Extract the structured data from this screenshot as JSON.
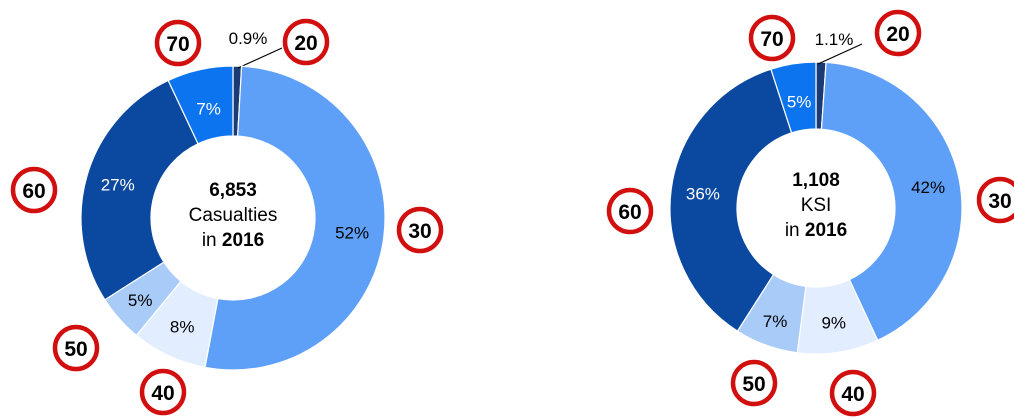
{
  "chart_data": [
    {
      "type": "pie",
      "categories": [
        "20",
        "30",
        "40",
        "50",
        "60",
        "70"
      ],
      "values": [
        0.9,
        52,
        8,
        5,
        27,
        7
      ],
      "labels": [
        "0.9%",
        "52%",
        "8%",
        "5%",
        "27%",
        "7%"
      ],
      "colors": [
        "#1b3b75",
        "#5ea0f7",
        "#e2eeff",
        "#a8cbf8",
        "#0b49a0",
        "#0c74ef"
      ],
      "label_colors": [
        "#000000",
        "#000000",
        "#000000",
        "#000000",
        "#ffffff",
        "#ffffff"
      ],
      "center": {
        "value": "6,853",
        "line2": "Casualties",
        "line3_prefix": "in ",
        "line3_bold": "2016"
      }
    },
    {
      "type": "pie",
      "categories": [
        "20",
        "30",
        "40",
        "50",
        "60",
        "70"
      ],
      "values": [
        1.1,
        42,
        9,
        7,
        36,
        5
      ],
      "labels": [
        "1.1%",
        "42%",
        "9%",
        "7%",
        "36%",
        "5%"
      ],
      "colors": [
        "#1b3b75",
        "#5ea0f7",
        "#e2eeff",
        "#a8cbf8",
        "#0b49a0",
        "#0c74ef"
      ],
      "label_colors": [
        "#000000",
        "#000000",
        "#000000",
        "#000000",
        "#ffffff",
        "#ffffff"
      ],
      "center": {
        "value": "1,108",
        "line2": "KSI",
        "line3_prefix": "in ",
        "line3_bold": "2016"
      }
    }
  ],
  "signs": {
    "accent_color": "#d20f0f"
  }
}
